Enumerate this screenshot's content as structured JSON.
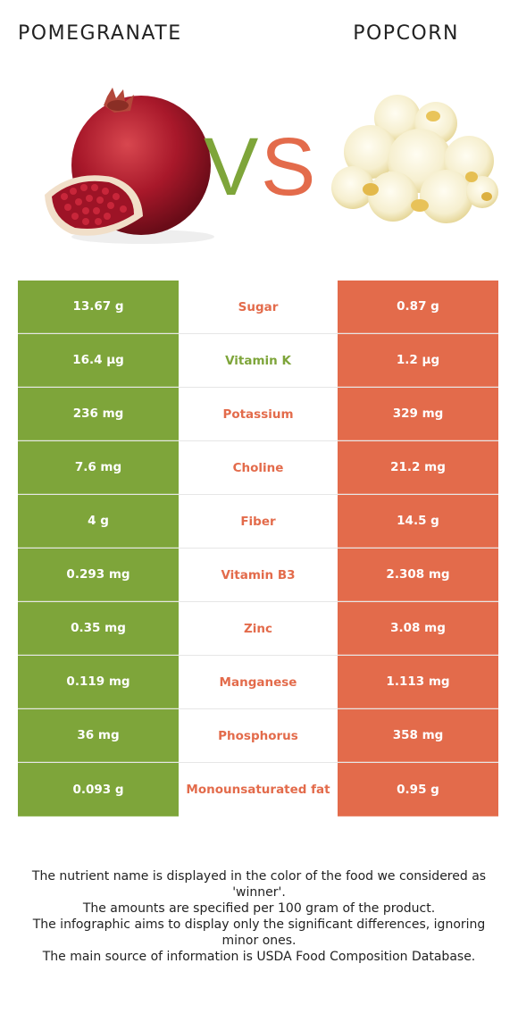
{
  "header": {
    "left_title": "POMEGRANATE",
    "right_title": "POPCORN",
    "vs_v": "V",
    "vs_s": "S"
  },
  "colors": {
    "left_winner": "#7ea53a",
    "right_winner": "#e36b4b"
  },
  "rows": [
    {
      "left": "13.67 g",
      "nutrient": "Sugar",
      "right": "0.87 g",
      "winner": "right"
    },
    {
      "left": "16.4 µg",
      "nutrient": "Vitamin K",
      "right": "1.2 µg",
      "winner": "left"
    },
    {
      "left": "236 mg",
      "nutrient": "Potassium",
      "right": "329 mg",
      "winner": "right"
    },
    {
      "left": "7.6 mg",
      "nutrient": "Choline",
      "right": "21.2 mg",
      "winner": "right"
    },
    {
      "left": "4 g",
      "nutrient": "Fiber",
      "right": "14.5 g",
      "winner": "right"
    },
    {
      "left": "0.293 mg",
      "nutrient": "Vitamin B3",
      "right": "2.308 mg",
      "winner": "right"
    },
    {
      "left": "0.35 mg",
      "nutrient": "Zinc",
      "right": "3.08 mg",
      "winner": "right"
    },
    {
      "left": "0.119 mg",
      "nutrient": "Manganese",
      "right": "1.113 mg",
      "winner": "right"
    },
    {
      "left": "36 mg",
      "nutrient": "Phosphorus",
      "right": "358 mg",
      "winner": "right"
    },
    {
      "left": "0.093 g",
      "nutrient": "Monounsaturated fat",
      "right": "0.95 g",
      "winner": "right"
    }
  ],
  "footer": {
    "line1": "The nutrient name is displayed in the color of the food we considered as 'winner'.",
    "line2": "The amounts are specified per 100 gram of the product.",
    "line3": "The infographic aims to display only the significant differences, ignoring minor ones.",
    "line4": "The main source of information is USDA Food Composition Database."
  }
}
